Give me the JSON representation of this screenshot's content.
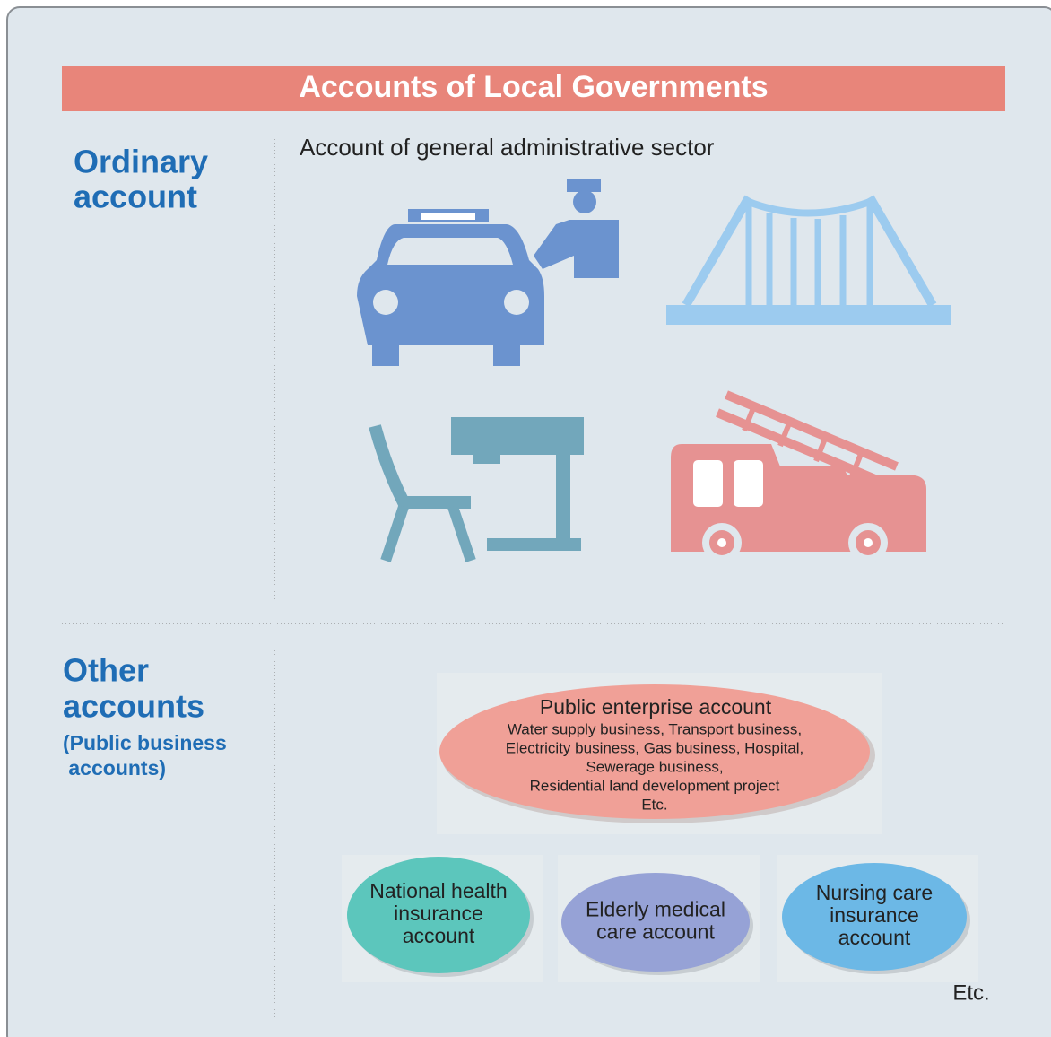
{
  "title": "Accounts of Local Governments",
  "ordinary": {
    "label_lines": [
      "Ordinary",
      "account"
    ],
    "subtitle": "Account of general administrative sector"
  },
  "other": {
    "label_lines": [
      "Other",
      "accounts"
    ],
    "note_lines": [
      "(Public business",
      " accounts)"
    ],
    "public_enterprise": {
      "title": "Public enterprise account",
      "lines": [
        "Water supply business, Transport business,",
        "Electricity business, Gas business, Hospital,",
        "Sewerage business,",
        "Residential land development project",
        "Etc."
      ]
    },
    "accounts": [
      {
        "lines": [
          "National health",
          "insurance",
          "account"
        ]
      },
      {
        "lines": [
          "Elderly medical",
          "care account"
        ]
      },
      {
        "lines": [
          "Nursing care",
          "insurance",
          "account"
        ]
      }
    ],
    "etc": "Etc."
  }
}
